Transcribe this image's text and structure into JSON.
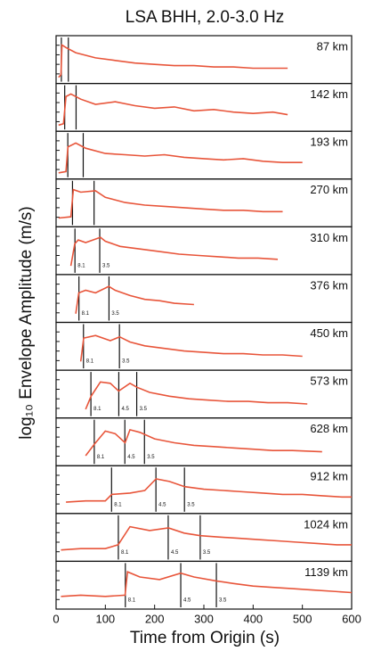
{
  "chart_data": {
    "type": "line",
    "title": "LSA BHH, 2.0-3.0 Hz",
    "xlabel": "Time from Origin (s)",
    "ylabel": "log₁₀ Envelope Amplitude (m/s)",
    "xlim": [
      0,
      600
    ],
    "xticks": [
      0,
      100,
      200,
      300,
      400,
      500,
      600
    ],
    "ylim": [
      -8,
      -5
    ],
    "color": "#e8553a",
    "panels": [
      {
        "label": "87 km",
        "x": [
          5,
          10,
          12,
          20,
          40,
          80,
          120,
          160,
          200,
          240,
          280,
          320,
          360,
          400,
          440,
          470
        ],
        "values": [
          -7.8,
          -7.6,
          -5.3,
          -5.5,
          -5.9,
          -6.3,
          -6.5,
          -6.7,
          -6.8,
          -6.9,
          -6.9,
          -7.0,
          -7.0,
          -7.1,
          -7.1,
          -7.1
        ],
        "phases": [
          {
            "x": 10.7
          },
          {
            "x": 24.9
          }
        ]
      },
      {
        "label": "142 km",
        "x": [
          5,
          15,
          20,
          30,
          50,
          80,
          120,
          160,
          200,
          240,
          280,
          320,
          360,
          400,
          440,
          470
        ],
        "values": [
          -7.8,
          -7.7,
          -5.6,
          -5.4,
          -5.8,
          -6.2,
          -6.0,
          -6.3,
          -6.5,
          -6.4,
          -6.7,
          -6.6,
          -6.8,
          -6.9,
          -6.8,
          -7.0
        ],
        "phases": [
          {
            "x": 17.5
          },
          {
            "x": 40.6
          }
        ]
      },
      {
        "label": "193 km",
        "x": [
          5,
          20,
          24,
          40,
          60,
          100,
          140,
          180,
          220,
          260,
          300,
          340,
          380,
          420,
          460,
          500
        ],
        "values": [
          -7.8,
          -7.7,
          -5.8,
          -5.5,
          -5.9,
          -6.3,
          -6.4,
          -6.5,
          -6.4,
          -6.6,
          -6.7,
          -6.8,
          -6.7,
          -6.9,
          -7.0,
          -7.0
        ],
        "phases": [
          {
            "x": 23.8
          },
          {
            "x": 55.1
          }
        ]
      },
      {
        "label": "270 km",
        "x": [
          5,
          30,
          35,
          50,
          80,
          100,
          140,
          180,
          220,
          260,
          300,
          340,
          380,
          420,
          460
        ],
        "values": [
          -7.6,
          -7.5,
          -5.4,
          -5.6,
          -5.5,
          -6.0,
          -6.4,
          -6.6,
          -6.7,
          -6.8,
          -6.9,
          -7.0,
          -7.0,
          -7.1,
          -7.1
        ],
        "phases": [
          {
            "x": 33.3
          },
          {
            "x": 77.1
          }
        ]
      },
      {
        "label": "310 km",
        "x": [
          30,
          38,
          45,
          60,
          90,
          100,
          130,
          170,
          210,
          250,
          290,
          330,
          370,
          410,
          450
        ],
        "values": [
          -7.6,
          -5.9,
          -5.6,
          -5.8,
          -5.4,
          -5.7,
          -6.1,
          -6.3,
          -6.5,
          -6.7,
          -6.8,
          -6.9,
          -7.0,
          -7.0,
          -7.1
        ],
        "phases": [
          {
            "x": 38.3,
            "label": "8.1"
          },
          {
            "x": 88.6,
            "label": "3.5"
          }
        ]
      },
      {
        "label": "376 km",
        "x": [
          40,
          46,
          60,
          80,
          107,
          120,
          150,
          180,
          210,
          240,
          280
        ],
        "values": [
          -7.6,
          -6.0,
          -5.8,
          -6.0,
          -5.5,
          -5.8,
          -6.2,
          -6.5,
          -6.6,
          -6.8,
          -6.9
        ],
        "phases": [
          {
            "x": 46.4,
            "label": "8.1"
          },
          {
            "x": 107.4,
            "label": "3.5"
          }
        ]
      },
      {
        "label": "450 km",
        "x": [
          50,
          56,
          80,
          110,
          129,
          150,
          180,
          220,
          260,
          300,
          340,
          380,
          420,
          460,
          500
        ],
        "values": [
          -7.6,
          -5.8,
          -5.6,
          -6.0,
          -5.7,
          -6.1,
          -6.4,
          -6.6,
          -6.8,
          -6.9,
          -7.0,
          -7.0,
          -7.1,
          -7.1,
          -7.2
        ],
        "phases": [
          {
            "x": 55.6,
            "label": "8.1"
          },
          {
            "x": 128.6,
            "label": "3.5"
          }
        ]
      },
      {
        "label": "573 km",
        "x": [
          60,
          71,
          90,
          110,
          127,
          150,
          164,
          190,
          230,
          270,
          310,
          350,
          390,
          430,
          470,
          510
        ],
        "values": [
          -7.6,
          -6.6,
          -5.5,
          -5.6,
          -6.2,
          -5.6,
          -5.9,
          -6.3,
          -6.6,
          -6.8,
          -6.9,
          -7.0,
          -7.0,
          -7.1,
          -7.1,
          -7.2
        ],
        "phases": [
          {
            "x": 70.7,
            "label": "8.1"
          },
          {
            "x": 127.3,
            "label": "4.5"
          },
          {
            "x": 163.7,
            "label": "3.5"
          }
        ]
      },
      {
        "label": "628 km",
        "x": [
          60,
          78,
          100,
          120,
          140,
          150,
          170,
          200,
          240,
          280,
          320,
          360,
          400,
          440,
          480,
          540
        ],
        "values": [
          -7.5,
          -6.6,
          -5.6,
          -5.8,
          -6.5,
          -5.5,
          -5.7,
          -6.2,
          -6.5,
          -6.7,
          -6.8,
          -6.9,
          -7.0,
          -7.1,
          -7.1,
          -7.2
        ],
        "phases": [
          {
            "x": 77.5,
            "label": "8.1"
          },
          {
            "x": 139.6,
            "label": "4.5"
          },
          {
            "x": 179.4,
            "label": "3.5"
          }
        ]
      },
      {
        "label": "912 km",
        "x": [
          20,
          60,
          100,
          113,
          150,
          180,
          203,
          230,
          261,
          300,
          340,
          380,
          420,
          460,
          500,
          540,
          580,
          600
        ],
        "values": [
          -7.4,
          -7.3,
          -7.3,
          -6.8,
          -6.7,
          -6.5,
          -5.6,
          -5.8,
          -6.2,
          -6.4,
          -6.5,
          -6.6,
          -6.7,
          -6.8,
          -6.8,
          -6.9,
          -7.0,
          -7.0
        ],
        "phases": [
          {
            "x": 112.6,
            "label": "8.1"
          },
          {
            "x": 202.7,
            "label": "4.5"
          },
          {
            "x": 260.6,
            "label": "3.5"
          }
        ]
      },
      {
        "label": "1024 km",
        "x": [
          10,
          50,
          100,
          126,
          150,
          190,
          228,
          260,
          293,
          330,
          370,
          410,
          450,
          490,
          530,
          570,
          600
        ],
        "values": [
          -7.4,
          -7.3,
          -7.3,
          -7.0,
          -5.6,
          -5.9,
          -5.7,
          -6.1,
          -6.3,
          -6.4,
          -6.5,
          -6.6,
          -6.7,
          -6.8,
          -6.9,
          -7.0,
          -7.0
        ],
        "phases": [
          {
            "x": 126.4,
            "label": "8.1"
          },
          {
            "x": 227.6,
            "label": "4.5"
          },
          {
            "x": 292.6,
            "label": "3.5"
          }
        ]
      },
      {
        "label": "1139 km",
        "x": [
          10,
          50,
          100,
          140,
          145,
          170,
          210,
          253,
          280,
          325,
          360,
          400,
          440,
          480,
          520,
          560,
          600
        ],
        "values": [
          -7.3,
          -7.2,
          -7.3,
          -7.2,
          -5.4,
          -5.8,
          -6.0,
          -5.5,
          -5.8,
          -6.1,
          -6.3,
          -6.5,
          -6.6,
          -6.7,
          -6.8,
          -6.9,
          -7.0
        ],
        "phases": [
          {
            "x": 140.6,
            "label": "8.1"
          },
          {
            "x": 253.1,
            "label": "4.5"
          },
          {
            "x": 325.4,
            "label": "3.5"
          }
        ]
      }
    ]
  }
}
